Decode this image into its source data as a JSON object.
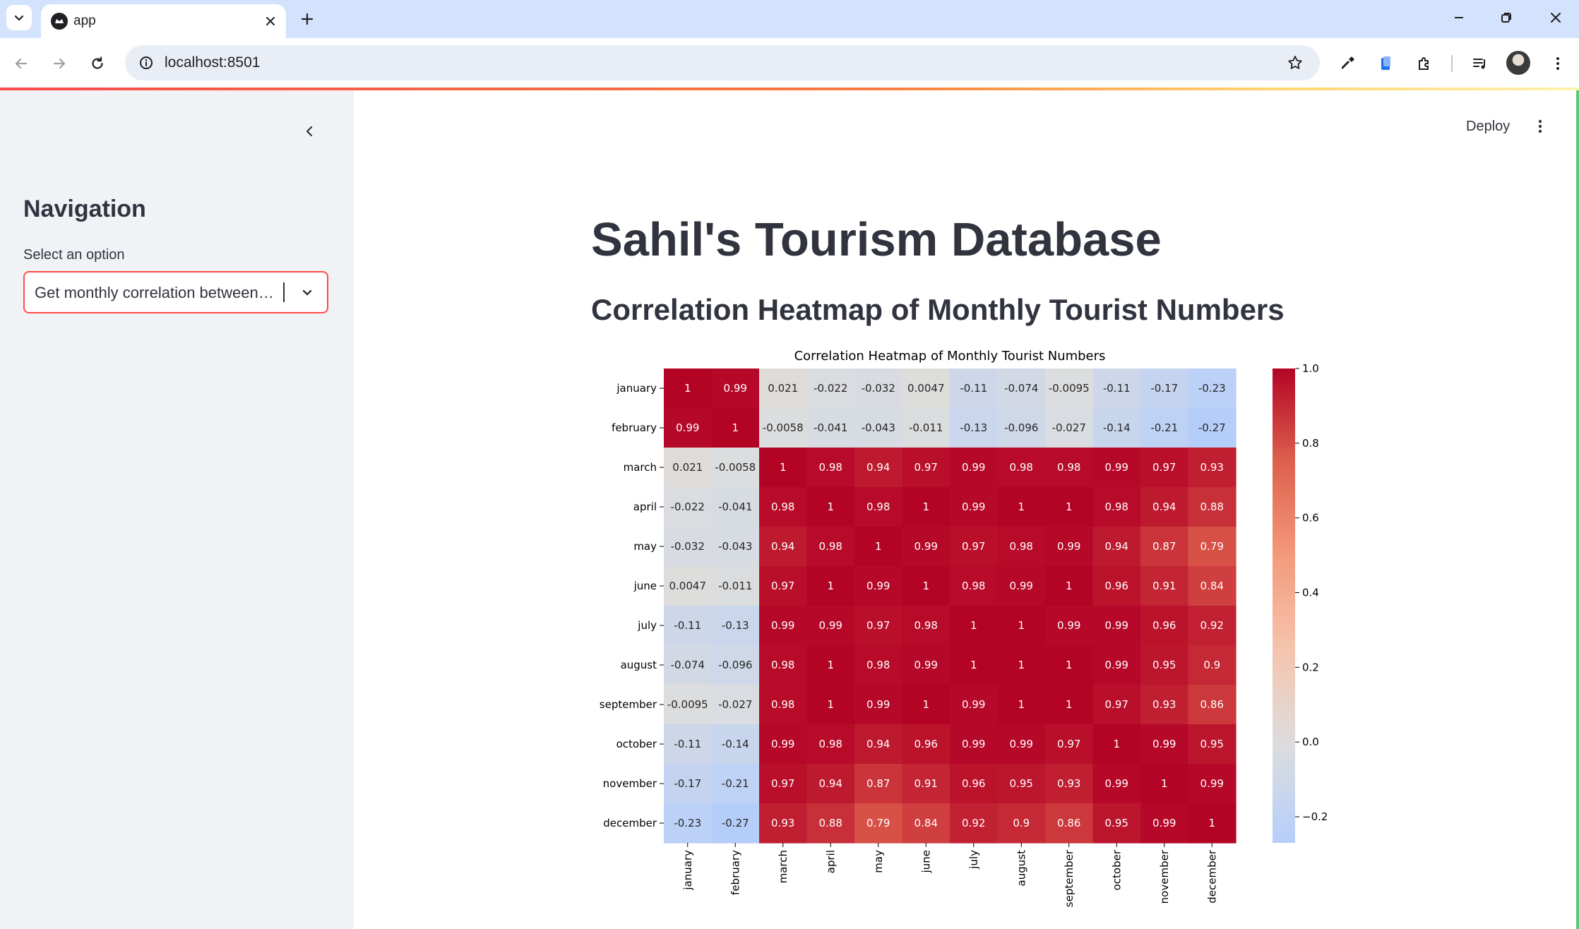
{
  "browser": {
    "tab_title": "app",
    "url": "localhost:8501"
  },
  "sidebar": {
    "heading": "Navigation",
    "select_label": "Select an option",
    "select_value": "Get monthly correlation between months"
  },
  "header": {
    "deploy_label": "Deploy"
  },
  "main": {
    "title": "Sahil's Tourism Database",
    "subheader": "Correlation Heatmap of Monthly Tourist Numbers"
  },
  "chart_data": {
    "type": "heatmap",
    "title": "Correlation Heatmap of Monthly Tourist Numbers",
    "colormap": "coolwarm",
    "x_labels": [
      "january",
      "february",
      "march",
      "april",
      "may",
      "june",
      "july",
      "august",
      "september",
      "october",
      "november",
      "december"
    ],
    "y_labels": [
      "january",
      "february",
      "march",
      "april",
      "may",
      "june",
      "july",
      "august",
      "september",
      "october",
      "november",
      "december"
    ],
    "matrix": [
      [
        1,
        0.99,
        0.021,
        -0.022,
        -0.032,
        0.0047,
        -0.11,
        -0.074,
        -0.0095,
        -0.11,
        -0.17,
        -0.23
      ],
      [
        0.99,
        1,
        -0.0058,
        -0.041,
        -0.043,
        -0.011,
        -0.13,
        -0.096,
        -0.027,
        -0.14,
        -0.21,
        -0.27
      ],
      [
        0.021,
        -0.0058,
        1,
        0.98,
        0.94,
        0.97,
        0.99,
        0.98,
        0.98,
        0.99,
        0.97,
        0.93
      ],
      [
        -0.022,
        -0.041,
        0.98,
        1,
        0.98,
        1,
        0.99,
        1,
        1,
        0.98,
        0.94,
        0.88
      ],
      [
        -0.032,
        -0.043,
        0.94,
        0.98,
        1,
        0.99,
        0.97,
        0.98,
        0.99,
        0.94,
        0.87,
        0.79
      ],
      [
        0.0047,
        -0.011,
        0.97,
        1,
        0.99,
        1,
        0.98,
        0.99,
        1,
        0.96,
        0.91,
        0.84
      ],
      [
        -0.11,
        -0.13,
        0.99,
        0.99,
        0.97,
        0.98,
        1,
        1,
        0.99,
        0.99,
        0.96,
        0.92
      ],
      [
        -0.074,
        -0.096,
        0.98,
        1,
        0.98,
        0.99,
        1,
        1,
        1,
        0.99,
        0.95,
        0.9
      ],
      [
        -0.0095,
        -0.027,
        0.98,
        1,
        0.99,
        1,
        0.99,
        1,
        1,
        0.97,
        0.93,
        0.86
      ],
      [
        -0.11,
        -0.14,
        0.99,
        0.98,
        0.94,
        0.96,
        0.99,
        0.99,
        0.97,
        1,
        0.99,
        0.95
      ],
      [
        -0.17,
        -0.21,
        0.97,
        0.94,
        0.87,
        0.91,
        0.96,
        0.95,
        0.93,
        0.99,
        1,
        0.99
      ],
      [
        -0.23,
        -0.27,
        0.93,
        0.88,
        0.79,
        0.84,
        0.92,
        0.9,
        0.86,
        0.95,
        0.99,
        1
      ]
    ],
    "colorbar": {
      "range": [
        -0.27,
        1.0
      ],
      "ticks": [
        1.0,
        0.8,
        0.6,
        0.4,
        0.2,
        0.0,
        -0.2
      ],
      "tick_labels": [
        "1.0",
        "0.8",
        "0.6",
        "0.4",
        "0.2",
        "0.0",
        "−0.2"
      ]
    }
  }
}
